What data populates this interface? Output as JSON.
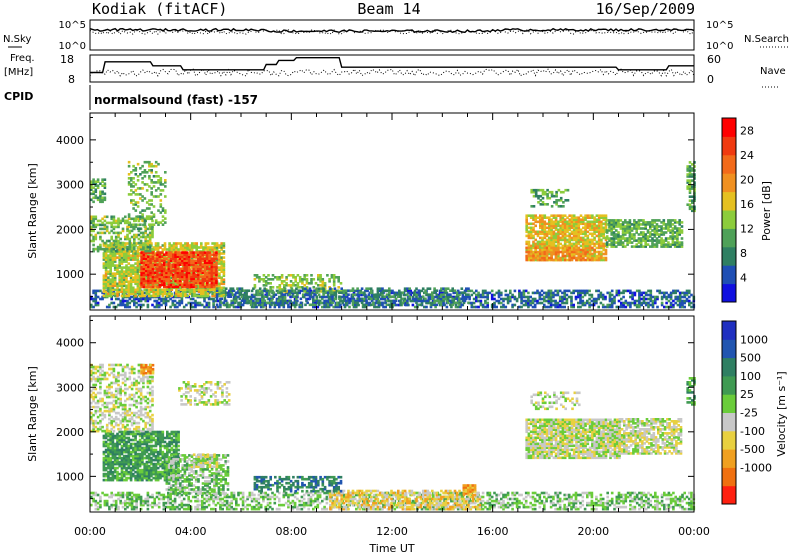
{
  "header": {
    "station": "Kodiak (fitACF)",
    "beam": "Beam 14",
    "date": "16/Sep/2009"
  },
  "summary": {
    "nsky_label": "N.Sky",
    "nsky_ticks": [
      "10^5",
      "10^0"
    ],
    "nsearch_label": "N.Search",
    "nsearch_ticks": [
      "10^5",
      "10^0"
    ],
    "freq_label_1": "Freq.",
    "freq_label_2": "[MHz]",
    "freq_ticks": [
      "18",
      "8"
    ],
    "nave_label": "Nave",
    "nave_ticks": [
      "60",
      "0"
    ],
    "cpid_label": "CPID",
    "cpid_text": "normalsound (fast) -157"
  },
  "colors": {
    "power_scale": [
      "#1010e0",
      "#1f4fb4",
      "#2f7f62",
      "#4fa158",
      "#8ccc3c",
      "#e5c020",
      "#f09020",
      "#f26a1a",
      "#f03a10",
      "#ff0000"
    ],
    "velocity_scale": [
      "#1f2fc0",
      "#2155b0",
      "#2f7f62",
      "#3f9a52",
      "#6acc3a",
      "#c8c8c8",
      "#e8d040",
      "#f0a020",
      "#f07010",
      "#ff2010"
    ],
    "ground_scatter": "#b4b4b4"
  },
  "chart_data": [
    {
      "type": "heatmap",
      "title": "",
      "quantity": "Power",
      "xlabel": "",
      "ylabel": "Slant Range [km]",
      "xlim_hours": [
        0,
        24
      ],
      "ylim_km": [
        200,
        4600
      ],
      "yticks": [
        "1000",
        "2000",
        "3000",
        "4000"
      ],
      "colorbar": {
        "label": "Power [dB]",
        "ticks": [
          "4",
          "8",
          "12",
          "16",
          "20",
          "24",
          "28"
        ],
        "range": [
          0,
          30
        ]
      },
      "regions": [
        {
          "t0": 0.0,
          "t1": 24.0,
          "r0": 250,
          "r1": 650,
          "level": 5,
          "density": 0.55
        },
        {
          "t0": 0.5,
          "t1": 5.3,
          "r0": 500,
          "r1": 1700,
          "level": 15,
          "density": 0.8
        },
        {
          "t0": 2.0,
          "t1": 5.0,
          "r0": 700,
          "r1": 1500,
          "level": 26,
          "density": 0.85
        },
        {
          "t0": 0.0,
          "t1": 2.5,
          "r0": 1500,
          "r1": 2300,
          "level": 12,
          "density": 0.5
        },
        {
          "t0": 0.0,
          "t1": 0.6,
          "r0": 2600,
          "r1": 3100,
          "level": 10,
          "density": 0.6
        },
        {
          "t0": 1.5,
          "t1": 3.0,
          "r0": 2000,
          "r1": 3500,
          "level": 12,
          "density": 0.3
        },
        {
          "t0": 6.5,
          "t1": 10.0,
          "r0": 600,
          "r1": 1000,
          "level": 13,
          "density": 0.45
        },
        {
          "t0": 5.0,
          "t1": 15.0,
          "r0": 300,
          "r1": 700,
          "level": 7,
          "density": 0.45
        },
        {
          "t0": 17.3,
          "t1": 20.5,
          "r0": 1300,
          "r1": 2300,
          "level": 17,
          "density": 0.8
        },
        {
          "t0": 17.3,
          "t1": 20.0,
          "r0": 1300,
          "r1": 1600,
          "level": 21,
          "density": 0.6
        },
        {
          "t0": 20.5,
          "t1": 23.5,
          "r0": 1600,
          "r1": 2200,
          "level": 11,
          "density": 0.7
        },
        {
          "t0": 17.5,
          "t1": 19.0,
          "r0": 2500,
          "r1": 2900,
          "level": 10,
          "density": 0.3
        },
        {
          "t0": 23.7,
          "t1": 24.0,
          "r0": 2400,
          "r1": 3500,
          "level": 10,
          "density": 0.6
        }
      ]
    },
    {
      "type": "heatmap",
      "title": "",
      "quantity": "Velocity",
      "xlabel": "Time UT",
      "ylabel": "Slant Range [km]",
      "xlim_hours": [
        0,
        24
      ],
      "ylim_km": [
        200,
        4600
      ],
      "xticks": [
        "00:00",
        "04:00",
        "08:00",
        "12:00",
        "16:00",
        "20:00",
        "00:00"
      ],
      "yticks": [
        "1000",
        "2000",
        "3000",
        "4000"
      ],
      "colorbar": {
        "label": "Velocity [m s⁻¹]",
        "ticks": [
          "1000",
          "500",
          "100",
          "25",
          "-25",
          "-100",
          "-500",
          "-1000"
        ],
        "range": [
          -1000,
          1000
        ]
      },
      "regions": [
        {
          "t0": 0.0,
          "t1": 24.0,
          "r0": 250,
          "r1": 650,
          "level": 4,
          "density": 0.5
        },
        {
          "t0": 9.5,
          "t1": 15.5,
          "r0": 250,
          "r1": 700,
          "level": 6,
          "density": 0.55
        },
        {
          "t0": 0.5,
          "t1": 3.5,
          "r0": 900,
          "r1": 2000,
          "level": 3,
          "density": 0.8
        },
        {
          "t0": 3.0,
          "t1": 5.5,
          "r0": 600,
          "r1": 1500,
          "level": 4,
          "density": 0.6
        },
        {
          "t0": 4.0,
          "t1": 5.0,
          "r0": 1200,
          "r1": 1500,
          "level": 5,
          "density": 0.7
        },
        {
          "t0": 0.0,
          "t1": 2.5,
          "r0": 2000,
          "r1": 3500,
          "level": 5,
          "density": 0.45
        },
        {
          "t0": 3.5,
          "t1": 5.5,
          "r0": 2600,
          "r1": 3100,
          "level": 5,
          "density": 0.4
        },
        {
          "t0": 6.5,
          "t1": 10.0,
          "r0": 650,
          "r1": 1000,
          "level": 2,
          "density": 0.5
        },
        {
          "t0": 17.3,
          "t1": 21.0,
          "r0": 1400,
          "r1": 2300,
          "level": 5,
          "density": 0.85
        },
        {
          "t0": 21.0,
          "t1": 23.5,
          "r0": 1500,
          "r1": 2300,
          "level": 5,
          "density": 0.7
        },
        {
          "t0": 17.5,
          "t1": 19.5,
          "r0": 2500,
          "r1": 2900,
          "level": 5,
          "density": 0.35
        },
        {
          "t0": 2.0,
          "t1": 2.5,
          "r0": 3300,
          "r1": 3500,
          "level": 7,
          "density": 0.7
        },
        {
          "t0": 14.8,
          "t1": 15.3,
          "r0": 600,
          "r1": 800,
          "level": 7,
          "density": 0.8
        },
        {
          "t0": 23.7,
          "t1": 24.0,
          "r0": 2600,
          "r1": 3200,
          "level": 3,
          "density": 0.6
        }
      ]
    }
  ]
}
